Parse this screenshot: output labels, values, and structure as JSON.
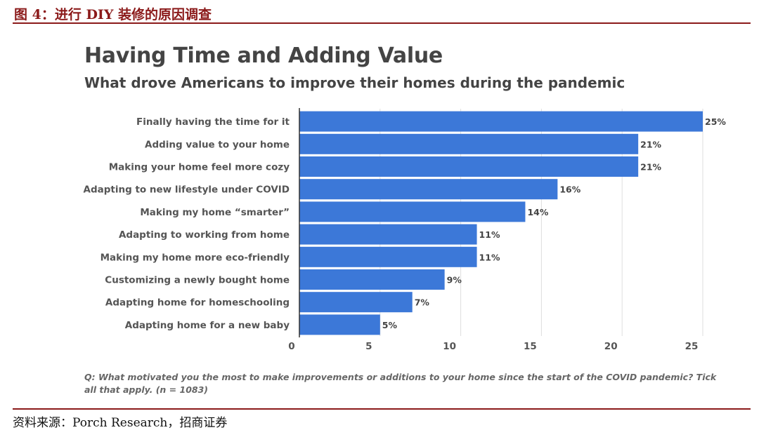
{
  "figure": {
    "caption": "图 4：进行 DIY 装修的原因调查",
    "source": "资料来源：Porch Research，招商证券"
  },
  "chart_data": {
    "type": "bar",
    "orientation": "horizontal",
    "title": "Having Time and Adding Value",
    "subtitle": "What drove Americans to improve their homes during the pandemic",
    "categories": [
      "Finally having the time for it",
      "Adding value to your home",
      "Making your home feel more cozy",
      "Adapting to new lifestyle under COVID",
      "Making my home “smarter”",
      "Adapting to working from home",
      "Making my home more eco-friendly",
      "Customizing a newly bought home",
      "Adapting home for homeschooling",
      "Adapting home for a new baby"
    ],
    "values": [
      25,
      21,
      21,
      16,
      14,
      11,
      11,
      9,
      7,
      5
    ],
    "data_labels": [
      "25%",
      "21%",
      "21%",
      "16%",
      "14%",
      "11%",
      "11%",
      "9%",
      "7%",
      "5%"
    ],
    "x_ticks": [
      0,
      5,
      10,
      15,
      20,
      25
    ],
    "xlim": [
      0,
      25
    ],
    "grid": true,
    "bar_color": "#3c78d8",
    "footnote": "Q: What motivated you the most to make improvements or additions to your home since the start of the COVID pandemic? Tick all that apply. (n = 1083)"
  }
}
